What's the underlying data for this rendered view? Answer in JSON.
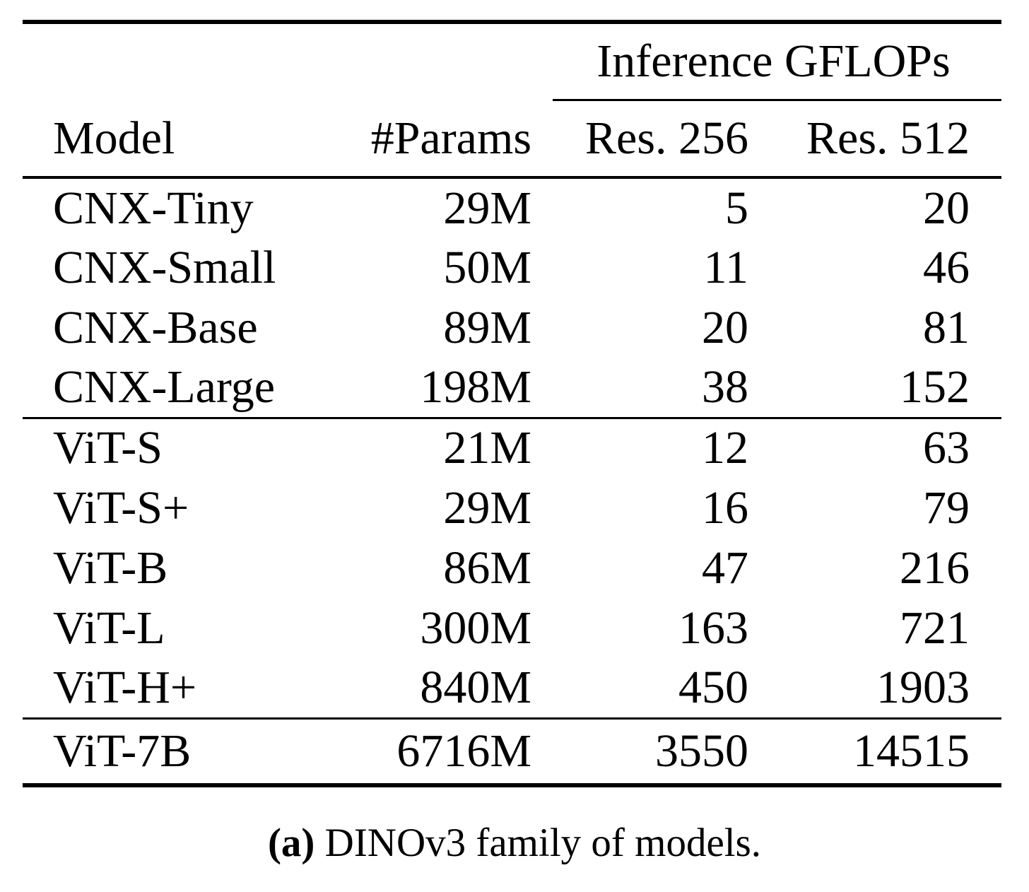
{
  "page": {
    "background": "#ffffff",
    "text_color": "#000000"
  },
  "table": {
    "span_header": "Inference GFLOPs",
    "columns": [
      "Model",
      "#Params",
      "Res. 256",
      "Res. 512"
    ],
    "groups": [
      {
        "name": "convnext-models",
        "rows": [
          [
            "CNX-Tiny",
            "29M",
            "5",
            "20"
          ],
          [
            "CNX-Small",
            "50M",
            "11",
            "46"
          ],
          [
            "CNX-Base",
            "89M",
            "20",
            "81"
          ],
          [
            "CNX-Large",
            "198M",
            "38",
            "152"
          ]
        ]
      },
      {
        "name": "vit-models",
        "rows": [
          [
            "ViT-S",
            "21M",
            "12",
            "63"
          ],
          [
            "ViT-S+",
            "29M",
            "16",
            "79"
          ],
          [
            "ViT-B",
            "86M",
            "47",
            "216"
          ],
          [
            "ViT-L",
            "300M",
            "163",
            "721"
          ],
          [
            "ViT-H+",
            "840M",
            "450",
            "1903"
          ]
        ]
      },
      {
        "name": "vit-7b-model",
        "rows": [
          [
            "ViT-7B",
            "6716M",
            "3550",
            "14515"
          ]
        ]
      }
    ]
  },
  "caption": {
    "label": "(a)",
    "text": "DINOv3 family of models."
  }
}
